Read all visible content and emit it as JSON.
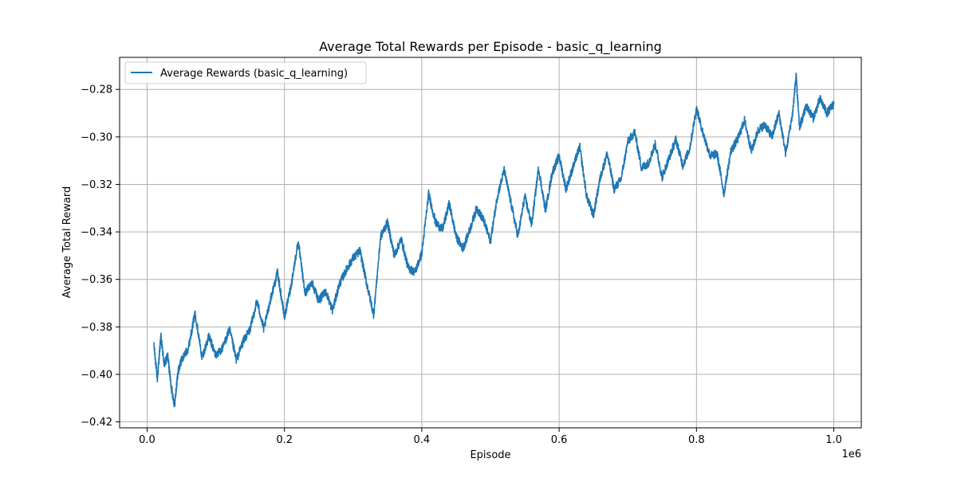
{
  "chart_data": {
    "type": "line",
    "title": "Average Total Rewards per Episode - basic_q_learning",
    "xlabel": "Episode",
    "ylabel": "Average Total Reward",
    "x_offset_label": "1e6",
    "xlim": [
      -0.04,
      1.04
    ],
    "ylim": [
      -0.4225,
      -0.2665
    ],
    "x_ticks": [
      0.0,
      0.2,
      0.4,
      0.6,
      0.8,
      1.0
    ],
    "x_tick_labels": [
      "0.0",
      "0.2",
      "0.4",
      "0.6",
      "0.8",
      "1.0"
    ],
    "y_ticks": [
      -0.42,
      -0.4,
      -0.38,
      -0.36,
      -0.34,
      -0.32,
      -0.3,
      -0.28
    ],
    "y_tick_labels": [
      "−0.42",
      "−0.40",
      "−0.38",
      "−0.36",
      "−0.34",
      "−0.32",
      "−0.30",
      "−0.28"
    ],
    "grid": true,
    "legend_position": "top-left",
    "series": [
      {
        "name": "Average Rewards (basic_q_learning)",
        "color": "#1f77b4",
        "x": [
          0.01,
          0.015,
          0.02,
          0.025,
          0.03,
          0.035,
          0.04,
          0.045,
          0.05,
          0.06,
          0.07,
          0.08,
          0.09,
          0.1,
          0.11,
          0.12,
          0.13,
          0.14,
          0.15,
          0.16,
          0.17,
          0.18,
          0.19,
          0.2,
          0.21,
          0.22,
          0.23,
          0.24,
          0.25,
          0.26,
          0.27,
          0.28,
          0.29,
          0.3,
          0.31,
          0.32,
          0.33,
          0.34,
          0.35,
          0.36,
          0.37,
          0.38,
          0.39,
          0.4,
          0.41,
          0.42,
          0.43,
          0.44,
          0.45,
          0.46,
          0.47,
          0.48,
          0.49,
          0.5,
          0.51,
          0.52,
          0.53,
          0.54,
          0.55,
          0.56,
          0.57,
          0.58,
          0.59,
          0.6,
          0.61,
          0.62,
          0.63,
          0.64,
          0.65,
          0.66,
          0.67,
          0.68,
          0.69,
          0.7,
          0.71,
          0.72,
          0.73,
          0.74,
          0.75,
          0.76,
          0.77,
          0.78,
          0.79,
          0.8,
          0.81,
          0.82,
          0.83,
          0.84,
          0.85,
          0.86,
          0.87,
          0.88,
          0.89,
          0.9,
          0.91,
          0.92,
          0.93,
          0.94,
          0.945,
          0.95,
          0.96,
          0.97,
          0.98,
          0.99,
          1.0
        ],
        "y": [
          -0.388,
          -0.402,
          -0.384,
          -0.396,
          -0.392,
          -0.405,
          -0.413,
          -0.399,
          -0.394,
          -0.389,
          -0.374,
          -0.393,
          -0.384,
          -0.392,
          -0.389,
          -0.381,
          -0.394,
          -0.386,
          -0.381,
          -0.369,
          -0.381,
          -0.368,
          -0.357,
          -0.376,
          -0.362,
          -0.344,
          -0.366,
          -0.361,
          -0.369,
          -0.365,
          -0.373,
          -0.362,
          -0.356,
          -0.351,
          -0.348,
          -0.362,
          -0.375,
          -0.342,
          -0.336,
          -0.35,
          -0.343,
          -0.355,
          -0.357,
          -0.349,
          -0.324,
          -0.336,
          -0.339,
          -0.328,
          -0.342,
          -0.347,
          -0.339,
          -0.33,
          -0.335,
          -0.344,
          -0.325,
          -0.314,
          -0.328,
          -0.342,
          -0.325,
          -0.337,
          -0.313,
          -0.331,
          -0.315,
          -0.308,
          -0.322,
          -0.313,
          -0.304,
          -0.325,
          -0.333,
          -0.317,
          -0.307,
          -0.322,
          -0.318,
          -0.302,
          -0.298,
          -0.313,
          -0.311,
          -0.303,
          -0.317,
          -0.309,
          -0.301,
          -0.312,
          -0.305,
          -0.288,
          -0.299,
          -0.308,
          -0.307,
          -0.324,
          -0.306,
          -0.301,
          -0.293,
          -0.306,
          -0.297,
          -0.295,
          -0.3,
          -0.29,
          -0.307,
          -0.29,
          -0.274,
          -0.296,
          -0.287,
          -0.292,
          -0.284,
          -0.29,
          -0.286
        ]
      }
    ]
  }
}
